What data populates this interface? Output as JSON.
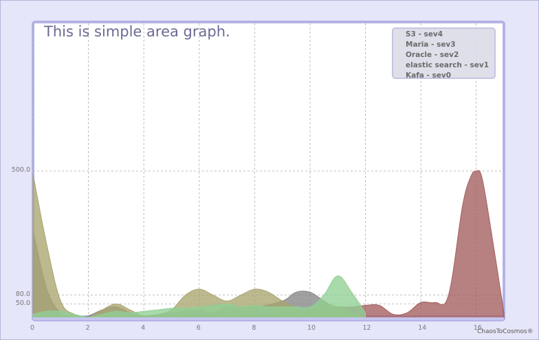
{
  "chart_data": {
    "type": "area",
    "title": "This is simple area graph.",
    "xlabel": "",
    "ylabel": "",
    "xlim": [
      0,
      17
    ],
    "ylim": [
      0,
      1000
    ],
    "grid": true,
    "legend_position": "top-right",
    "x_ticks": [
      0,
      2,
      4,
      6,
      8,
      10,
      12,
      14,
      16
    ],
    "y_ticks": [
      "50.0",
      "80.0",
      "500.0"
    ],
    "y_tick_values": [
      50,
      80,
      500
    ],
    "series": [
      {
        "name": "S3 - sev4",
        "color": "#a35e5e",
        "x": [
          0,
          1,
          1.5,
          2,
          2.5,
          3,
          4,
          5,
          6,
          7,
          8,
          9,
          10,
          10.5,
          11,
          11.5,
          12,
          12.5,
          13,
          13.5,
          14,
          14.5,
          15,
          15.5,
          15.8,
          16,
          16.2,
          16.5,
          17
        ],
        "y": [
          0,
          0,
          2,
          5,
          5,
          5,
          8,
          10,
          15,
          20,
          15,
          20,
          30,
          40,
          40,
          40,
          45,
          45,
          15,
          20,
          55,
          55,
          80,
          380,
          480,
          500,
          480,
          320,
          20
        ]
      },
      {
        "name": "Maria - sev3",
        "color": "#858585",
        "x": [
          0,
          0.5,
          1,
          1.5,
          2,
          2.5,
          3,
          3.5,
          4,
          5,
          6,
          6.5,
          7,
          8,
          9,
          9.5,
          10,
          10.5,
          11,
          11.5,
          12
        ],
        "y": [
          300,
          100,
          20,
          5,
          10,
          30,
          40,
          20,
          10,
          20,
          30,
          20,
          40,
          40,
          60,
          90,
          90,
          60,
          30,
          15,
          0
        ]
      },
      {
        "name": "Oracle - sev2",
        "color": "#a9a570",
        "x": [
          0,
          0.5,
          1,
          1.5,
          2,
          2.5,
          3,
          3.5,
          4,
          4.5,
          5,
          5.5,
          6,
          6.5,
          7,
          7.5,
          8,
          8.5,
          9,
          9.5,
          10,
          10.5,
          11,
          11.5,
          12
        ],
        "y": [
          490,
          250,
          60,
          15,
          5,
          30,
          50,
          30,
          10,
          15,
          30,
          80,
          100,
          80,
          60,
          80,
          100,
          90,
          60,
          40,
          30,
          50,
          40,
          20,
          0
        ]
      },
      {
        "name": "elastic search - sev1",
        "color": "#b9b3e0",
        "x": [
          0,
          1,
          2,
          3,
          4,
          5,
          6,
          7,
          8,
          9,
          10,
          11,
          12,
          13,
          14,
          15,
          16,
          17
        ],
        "y": [
          10,
          10,
          10,
          10,
          10,
          10,
          10,
          10,
          10,
          10,
          10,
          10,
          10,
          10,
          10,
          10,
          10,
          10
        ]
      },
      {
        "name": "Kafa - sev0",
        "color": "#8fcf95",
        "x": [
          0,
          0.5,
          1,
          1.5,
          2,
          2.5,
          3,
          3.5,
          4,
          4.5,
          5,
          5.5,
          6,
          6.5,
          7,
          7.5,
          8,
          8.5,
          9,
          9.5,
          10,
          10.5,
          11,
          11.5,
          12
        ],
        "y": [
          15,
          25,
          25,
          15,
          5,
          15,
          25,
          20,
          25,
          30,
          35,
          35,
          40,
          45,
          50,
          40,
          45,
          40,
          40,
          40,
          40,
          80,
          145,
          90,
          20
        ]
      }
    ]
  },
  "credit": "ChaosToCosmos®"
}
